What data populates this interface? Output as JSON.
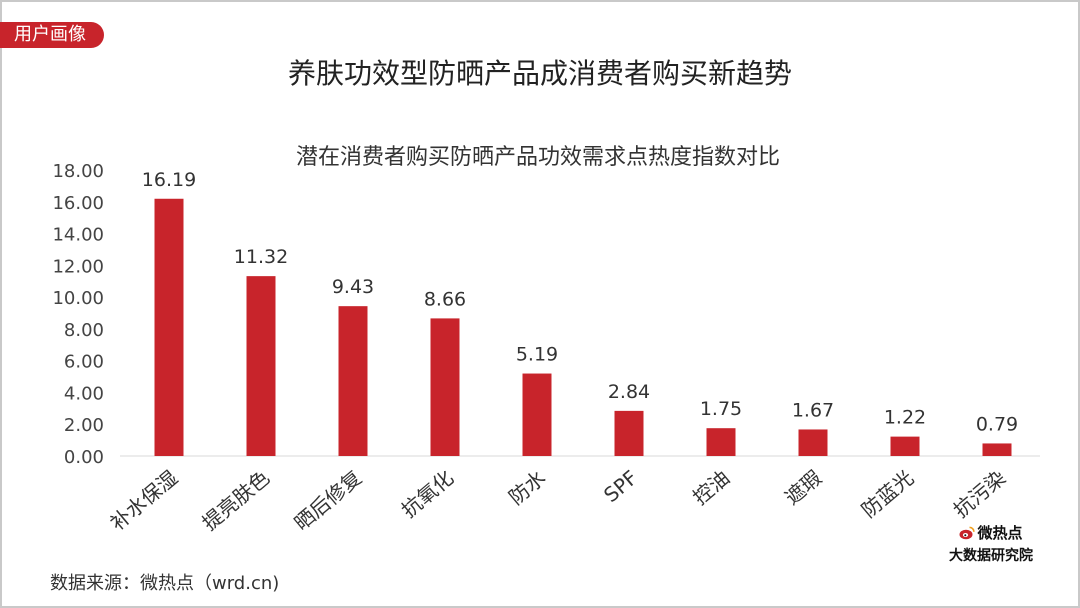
{
  "header": {
    "tag": "用户画像",
    "title": "养肤功效型防晒产品成消费者购买新趋势"
  },
  "footer": {
    "source": "数据来源：微热点（wrd.cn)",
    "brand_line1": "微热点",
    "brand_line2": "大数据研究院",
    "brand_icon": "weibo-icon"
  },
  "colors": {
    "bar": "#c8242b",
    "tag": "#c8242b"
  },
  "chart_data": {
    "type": "bar",
    "title": "潜在消费者购买防晒产品功效需求点热度指数对比",
    "categories": [
      "补水保湿",
      "提亮肤色",
      "晒后修复",
      "抗氧化",
      "防水",
      "SPF",
      "控油",
      "遮瑕",
      "防蓝光",
      "抗污染"
    ],
    "values": [
      16.19,
      11.32,
      9.43,
      8.66,
      5.19,
      2.84,
      1.75,
      1.67,
      1.22,
      0.79
    ],
    "value_labels": [
      "16.19",
      "11.32",
      "9.43",
      "8.66",
      "5.19",
      "2.84",
      "1.75",
      "1.67",
      "1.22",
      "0.79"
    ],
    "yticks": [
      "0.00",
      "2.00",
      "4.00",
      "6.00",
      "8.00",
      "10.00",
      "12.00",
      "14.00",
      "16.00",
      "18.00"
    ],
    "ylim": [
      0,
      18
    ],
    "grid": false,
    "legend": "none"
  }
}
